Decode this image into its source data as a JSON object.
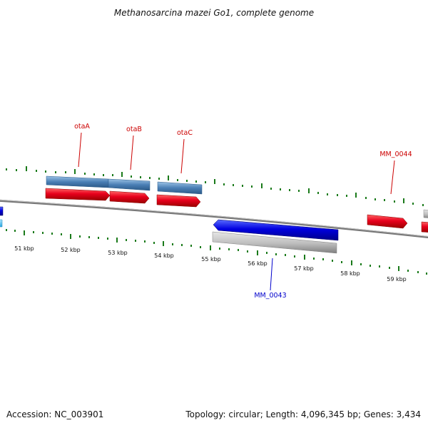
{
  "title": "Methanosarcina mazei Go1, complete genome",
  "footer": {
    "accession": "Accession: NC_003901",
    "summary": "Topology: circular; Length: 4,096,345 bp; Genes: 3,434"
  },
  "scale": {
    "unit": "kbp",
    "ticks": [
      "51 kbp",
      "52 kbp",
      "53 kbp",
      "54 kbp",
      "55 kbp",
      "56 kbp",
      "57 kbp",
      "58 kbp",
      "59 kbp"
    ]
  },
  "gene_labels": {
    "otaA": "otaA",
    "otaB": "otaB",
    "otaC": "otaC",
    "mm0044": "MM_0044",
    "mm0043": "MM_0043"
  },
  "colors": {
    "forward_gene": "#e8001c",
    "reverse_gene": "#0000e0",
    "forward_cds": "#4a7fb5",
    "reverse_cds": "#bdbdbd",
    "forward_label": "#cc0000",
    "reverse_label": "#0000cc",
    "tick": "#1a7a1a",
    "backbone": "#777777"
  }
}
